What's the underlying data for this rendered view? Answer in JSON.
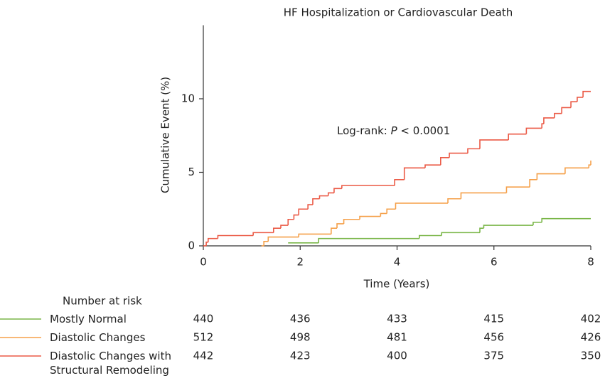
{
  "chart_data": {
    "type": "step",
    "title": "HF Hospitalization or Cardiovascular Death",
    "x_label": "Time (Years)",
    "y_label": "Cumulative Event (%)",
    "annotation": {
      "prefix": "Log-rank:",
      "italic": "P",
      "suffix": "< 0.0001"
    },
    "xlim": [
      0,
      8
    ],
    "xticks": [
      0,
      2,
      4,
      6,
      8
    ],
    "ylim": [
      0,
      15
    ],
    "yticks": [
      0,
      5,
      10
    ],
    "risk_title": "Number at risk",
    "risk_x": [
      0,
      2,
      4,
      6,
      8
    ],
    "series": [
      {
        "name": "Mostly Normal",
        "color": "#7ab648",
        "x": [
          1.75,
          2.38,
          4.46,
          4.92,
          5.71,
          5.79,
          6.81,
          6.99,
          8
        ],
        "values": [
          0.2,
          0.5,
          0.7,
          0.9,
          1.2,
          1.4,
          1.6,
          1.85,
          1.85
        ],
        "at_risk": [
          440,
          436,
          433,
          415,
          402
        ]
      },
      {
        "name": "Diastolic Changes",
        "color": "#f5a04a",
        "x": [
          1.2,
          1.25,
          1.34,
          1.97,
          2.64,
          2.76,
          2.9,
          3.23,
          3.66,
          3.79,
          3.97,
          5.05,
          5.32,
          6.26,
          6.74,
          6.89,
          7.47,
          7.96,
          8
        ],
        "values": [
          0,
          0.3,
          0.6,
          0.8,
          1.2,
          1.5,
          1.8,
          2.0,
          2.2,
          2.5,
          2.9,
          3.2,
          3.6,
          4.0,
          4.5,
          4.9,
          5.3,
          5.5,
          5.8
        ],
        "at_risk": [
          512,
          498,
          481,
          456,
          426
        ]
      },
      {
        "name": "Diastolic Changes with Structural Remodeling",
        "color": "#eb5a46",
        "x": [
          0,
          0.06,
          0.1,
          0.3,
          1.03,
          1.45,
          1.6,
          1.75,
          1.87,
          1.97,
          2.16,
          2.26,
          2.4,
          2.58,
          2.7,
          2.86,
          3.95,
          4.15,
          4.58,
          4.9,
          5.08,
          5.46,
          5.71,
          6.3,
          6.67,
          6.99,
          7.03,
          7.25,
          7.4,
          7.59,
          7.72,
          7.84,
          8
        ],
        "values": [
          0,
          0.25,
          0.5,
          0.7,
          0.9,
          1.2,
          1.4,
          1.8,
          2.1,
          2.5,
          2.8,
          3.2,
          3.4,
          3.6,
          3.9,
          4.1,
          4.5,
          5.3,
          5.5,
          6.0,
          6.3,
          6.6,
          7.2,
          7.6,
          8.0,
          8.3,
          8.7,
          9.0,
          9.4,
          9.8,
          10.1,
          10.5,
          10.5
        ],
        "at_risk": [
          442,
          423,
          400,
          375,
          350
        ]
      }
    ]
  }
}
